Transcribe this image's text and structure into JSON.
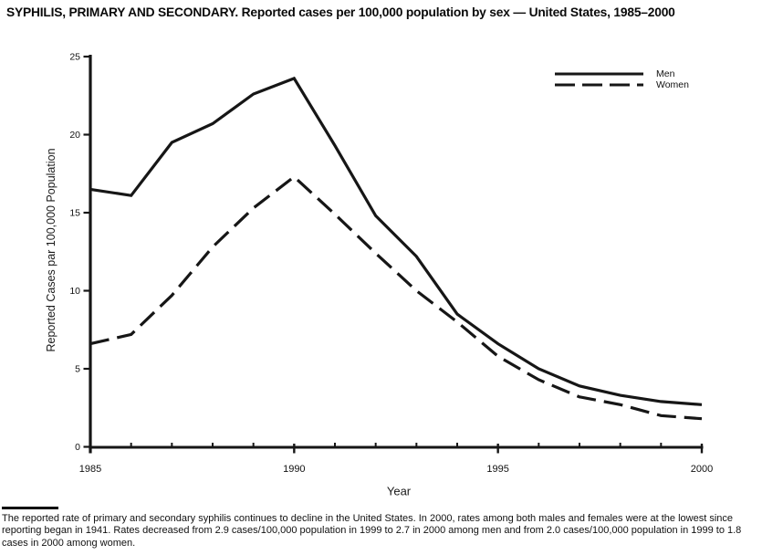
{
  "title": "SYPHILIS, PRIMARY AND SECONDARY. Reported cases per 100,000 population by sex — United States, 1985–2000",
  "colors": {
    "line": "#161616",
    "text": "#111111",
    "background": "#ffffff"
  },
  "chart_data": {
    "type": "line",
    "x": [
      1985,
      1986,
      1987,
      1988,
      1989,
      1990,
      1991,
      1992,
      1993,
      1994,
      1995,
      1996,
      1997,
      1998,
      1999,
      2000
    ],
    "series": [
      {
        "name": "Men",
        "style": "solid",
        "values": [
          16.5,
          16.1,
          19.5,
          20.7,
          22.6,
          23.6,
          19.3,
          14.8,
          12.2,
          8.5,
          6.6,
          5.0,
          3.9,
          3.3,
          2.9,
          2.7
        ]
      },
      {
        "name": "Women",
        "style": "dashed",
        "values": [
          6.6,
          7.2,
          9.7,
          12.8,
          15.3,
          17.3,
          14.9,
          12.4,
          10.0,
          8.0,
          5.8,
          4.3,
          3.2,
          2.7,
          2.0,
          1.8
        ]
      }
    ],
    "xlabel": "Year",
    "ylabel": "Reported Cases par 100,000 Population",
    "ylim": [
      0,
      25
    ],
    "yticks": [
      0,
      5,
      10,
      15,
      20,
      25
    ],
    "xticks_labeled": [
      1985,
      1990,
      1995,
      2000
    ],
    "grid": false,
    "legend_position": "top-right"
  },
  "footer": {
    "lines": [
      "The reported rate of primary and secondary syphilis continues to decline in the United States. In 2000, rates among both males and females were at the lowest since",
      "reporting began in 1941. Rates decreased from 2.9 cases/100,000 population in 1999 to 2.7 in 2000 among men and from 2.0 cases/100,000 population in 1999 to 1.8",
      "cases in 2000 among women."
    ]
  }
}
